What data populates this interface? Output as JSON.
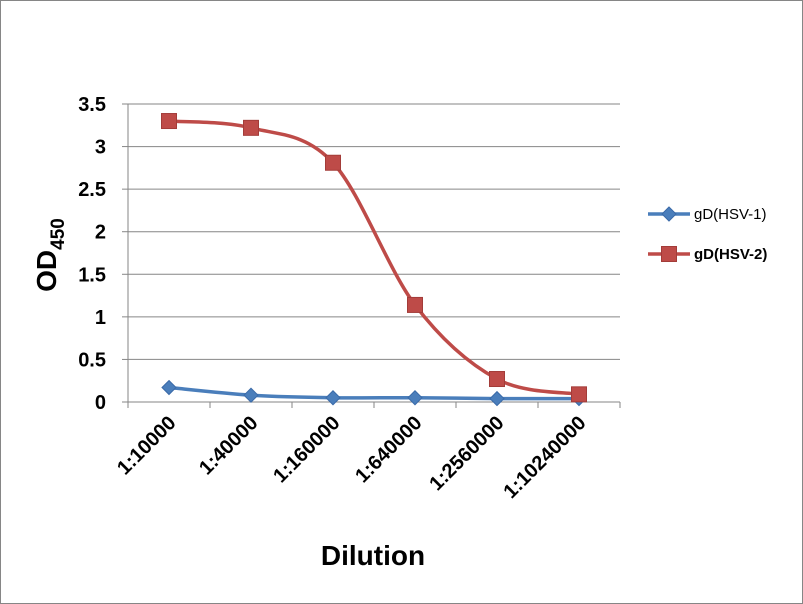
{
  "chart_data": {
    "type": "line",
    "categories": [
      "1:10000",
      "1:40000",
      "1:160000",
      "1:640000",
      "1:2560000",
      "1:10240000"
    ],
    "series": [
      {
        "name": "gD(HSV-1)",
        "values": [
          0.17,
          0.08,
          0.05,
          0.05,
          0.04,
          0.04
        ],
        "color": "#4a7ebb",
        "marker": "diamond",
        "bold": false
      },
      {
        "name": "gD(HSV-2)",
        "values": [
          3.3,
          3.22,
          2.81,
          1.14,
          0.27,
          0.09
        ],
        "color": "#be4b48",
        "marker": "square",
        "bold": true
      }
    ],
    "xlabel": "Dilution",
    "ylabel": "OD",
    "ylabel_subscript": "450",
    "ylim": [
      0,
      3.5
    ],
    "yticks": [
      "0",
      "0.5",
      "1",
      "1.5",
      "2",
      "2.5",
      "3",
      "3.5"
    ],
    "grid": true,
    "legend_position": "right",
    "smooth": true
  }
}
